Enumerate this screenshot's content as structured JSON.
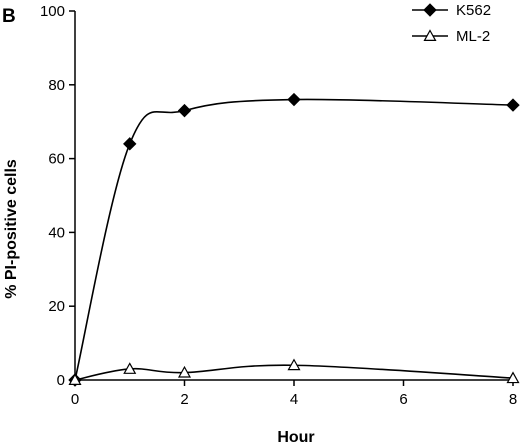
{
  "panel_label": "B",
  "chart_data": {
    "type": "line",
    "xlabel": "Hour",
    "ylabel": "% PI-positive cells",
    "xlim": [
      0,
      8
    ],
    "ylim": [
      0,
      100
    ],
    "x_ticks": [
      "0",
      "2",
      "4",
      "6",
      "8"
    ],
    "y_ticks": [
      "0",
      "20",
      "40",
      "60",
      "80",
      "100"
    ],
    "grid": false,
    "legend_position": "top-right",
    "series": [
      {
        "name": "K562",
        "marker": "filled-diamond",
        "color": "#000000",
        "x": [
          0,
          1,
          2,
          4,
          8
        ],
        "y": [
          0,
          64,
          73,
          76,
          74.5
        ]
      },
      {
        "name": "ML-2",
        "marker": "open-triangle",
        "color": "#000000",
        "x": [
          0,
          1,
          2,
          4,
          8
        ],
        "y": [
          0,
          3,
          2,
          4,
          0.5
        ]
      }
    ]
  }
}
